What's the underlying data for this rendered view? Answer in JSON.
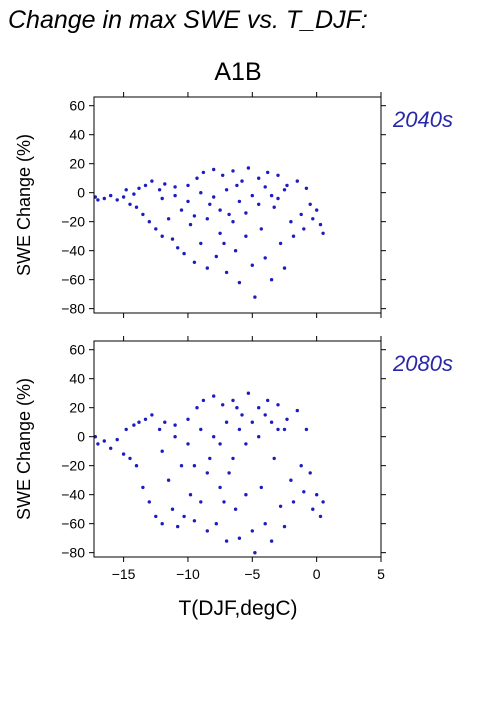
{
  "title": "Change in max SWE vs. T_DJF:",
  "scenario": "A1B",
  "colors": {
    "points": "#1c1cc0",
    "period_label": "#2828a8"
  },
  "chart_data": [
    {
      "type": "scatter",
      "period_label": "2040s",
      "xlabel": "",
      "ylabel": "SWE Change (%)",
      "xlim": [
        -17.3,
        5
      ],
      "ylim": [
        -83,
        66
      ],
      "xticks": [
        -15,
        -10,
        -5,
        0,
        5
      ],
      "xtick_labels": [
        "",
        "",
        "",
        "",
        ""
      ],
      "yticks": [
        60,
        40,
        20,
        0,
        -20,
        -40,
        -60,
        -80
      ],
      "ytick_labels": [
        "60",
        "40",
        "20",
        "0",
        "−20",
        "−40",
        "−60",
        "−80"
      ],
      "grid": false,
      "points": [
        [
          -17.2,
          -3
        ],
        [
          -17.0,
          -5
        ],
        [
          -16.5,
          -4
        ],
        [
          -16.0,
          -2
        ],
        [
          -15.5,
          -5
        ],
        [
          -15.0,
          -3
        ],
        [
          -14.8,
          2
        ],
        [
          -14.5,
          -8
        ],
        [
          -14.2,
          -1
        ],
        [
          -14.0,
          -10
        ],
        [
          -13.8,
          3
        ],
        [
          -13.5,
          -15
        ],
        [
          -13.3,
          5
        ],
        [
          -13.0,
          -20
        ],
        [
          -12.8,
          8
        ],
        [
          -12.5,
          -25
        ],
        [
          -12.2,
          2
        ],
        [
          -12.0,
          -30
        ],
        [
          -11.8,
          6
        ],
        [
          -11.5,
          -18
        ],
        [
          -11.2,
          -32
        ],
        [
          -11.0,
          4
        ],
        [
          -10.8,
          -38
        ],
        [
          -10.5,
          -12
        ],
        [
          -10.3,
          -42
        ],
        [
          -10.0,
          5
        ],
        [
          -9.8,
          -22
        ],
        [
          -9.5,
          -48
        ],
        [
          -9.3,
          10
        ],
        [
          -9.0,
          -35
        ],
        [
          -8.8,
          14
        ],
        [
          -8.5,
          -52
        ],
        [
          -8.3,
          -8
        ],
        [
          -8.0,
          16
        ],
        [
          -7.8,
          -44
        ],
        [
          -7.5,
          -28
        ],
        [
          -7.3,
          12
        ],
        [
          -7.0,
          -55
        ],
        [
          -6.8,
          -15
        ],
        [
          -6.5,
          15
        ],
        [
          -6.3,
          -40
        ],
        [
          -6.0,
          -62
        ],
        [
          -5.8,
          8
        ],
        [
          -5.5,
          -30
        ],
        [
          -5.3,
          17
        ],
        [
          -5.0,
          -50
        ],
        [
          -4.8,
          -72
        ],
        [
          -4.5,
          10
        ],
        [
          -4.3,
          -25
        ],
        [
          -4.0,
          -45
        ],
        [
          -3.8,
          14
        ],
        [
          -3.5,
          -60
        ],
        [
          -3.3,
          -10
        ],
        [
          -3.0,
          12
        ],
        [
          -2.8,
          -35
        ],
        [
          -2.5,
          -52
        ],
        [
          -2.3,
          5
        ],
        [
          -2.0,
          -20
        ],
        [
          -1.8,
          -30
        ],
        [
          -1.5,
          8
        ],
        [
          -1.2,
          -15
        ],
        [
          -1.0,
          -25
        ],
        [
          -0.8,
          3
        ],
        [
          -0.5,
          -8
        ],
        [
          -0.3,
          -18
        ],
        [
          0.0,
          -12
        ],
        [
          0.3,
          -22
        ],
        [
          0.5,
          -28
        ],
        [
          -6.0,
          -6
        ],
        [
          -7.0,
          2
        ],
        [
          -8.0,
          -3
        ],
        [
          -9.0,
          0
        ],
        [
          -5.0,
          -2
        ],
        [
          -4.0,
          4
        ],
        [
          -3.0,
          -4
        ],
        [
          -10.0,
          -6
        ],
        [
          -11.0,
          -2
        ],
        [
          -12.0,
          -4
        ],
        [
          -6.5,
          -20
        ],
        [
          -7.5,
          -12
        ],
        [
          -8.5,
          -18
        ],
        [
          -5.5,
          -14
        ],
        [
          -4.5,
          -8
        ],
        [
          -3.5,
          -2
        ],
        [
          -2.5,
          2
        ],
        [
          -9.5,
          -16
        ],
        [
          -6.2,
          5
        ],
        [
          -7.2,
          -35
        ]
      ]
    },
    {
      "type": "scatter",
      "period_label": "2080s",
      "xlabel": "T(DJF,degC)",
      "ylabel": "SWE Change (%)",
      "xlim": [
        -17.3,
        5
      ],
      "ylim": [
        -83,
        66
      ],
      "xticks": [
        -15,
        -10,
        -5,
        0,
        5
      ],
      "xtick_labels": [
        "−15",
        "−10",
        "−5",
        "0",
        "5"
      ],
      "yticks": [
        60,
        40,
        20,
        0,
        -20,
        -40,
        -60,
        -80
      ],
      "ytick_labels": [
        "60",
        "40",
        "20",
        "0",
        "−20",
        "−40",
        "−60",
        "−80"
      ],
      "grid": false,
      "points": [
        [
          -17.2,
          0
        ],
        [
          -17.0,
          -5
        ],
        [
          -16.5,
          -3
        ],
        [
          -16.0,
          -8
        ],
        [
          -15.5,
          -2
        ],
        [
          -15.0,
          -12
        ],
        [
          -14.8,
          5
        ],
        [
          -14.5,
          -15
        ],
        [
          -14.2,
          8
        ],
        [
          -14.0,
          -20
        ],
        [
          -13.8,
          10
        ],
        [
          -13.5,
          -35
        ],
        [
          -13.3,
          12
        ],
        [
          -13.0,
          -45
        ],
        [
          -12.8,
          15
        ],
        [
          -12.5,
          -55
        ],
        [
          -12.2,
          5
        ],
        [
          -12.0,
          -60
        ],
        [
          -11.8,
          10
        ],
        [
          -11.5,
          -30
        ],
        [
          -11.2,
          -50
        ],
        [
          -11.0,
          8
        ],
        [
          -10.8,
          -62
        ],
        [
          -10.5,
          -20
        ],
        [
          -10.3,
          -55
        ],
        [
          -10.0,
          12
        ],
        [
          -9.8,
          -40
        ],
        [
          -9.5,
          -58
        ],
        [
          -9.3,
          20
        ],
        [
          -9.0,
          -45
        ],
        [
          -8.8,
          25
        ],
        [
          -8.5,
          -65
        ],
        [
          -8.3,
          -15
        ],
        [
          -8.0,
          28
        ],
        [
          -7.8,
          -60
        ],
        [
          -7.5,
          -35
        ],
        [
          -7.3,
          22
        ],
        [
          -7.0,
          -72
        ],
        [
          -6.8,
          -25
        ],
        [
          -6.5,
          25
        ],
        [
          -6.3,
          -50
        ],
        [
          -6.0,
          -70
        ],
        [
          -5.8,
          15
        ],
        [
          -5.5,
          -40
        ],
        [
          -5.3,
          30
        ],
        [
          -5.0,
          -65
        ],
        [
          -4.8,
          -80
        ],
        [
          -4.5,
          20
        ],
        [
          -4.3,
          -35
        ],
        [
          -4.0,
          -60
        ],
        [
          -3.8,
          25
        ],
        [
          -3.5,
          -72
        ],
        [
          -3.3,
          -15
        ],
        [
          -3.0,
          22
        ],
        [
          -2.8,
          -48
        ],
        [
          -2.5,
          -62
        ],
        [
          -2.3,
          12
        ],
        [
          -2.0,
          -30
        ],
        [
          -1.8,
          -45
        ],
        [
          -1.5,
          18
        ],
        [
          -1.2,
          -20
        ],
        [
          -1.0,
          -38
        ],
        [
          -0.8,
          5
        ],
        [
          -0.5,
          -25
        ],
        [
          -0.3,
          -50
        ],
        [
          0.0,
          -40
        ],
        [
          0.3,
          -55
        ],
        [
          0.5,
          -45
        ],
        [
          -6.0,
          5
        ],
        [
          -7.0,
          10
        ],
        [
          -8.0,
          0
        ],
        [
          -9.0,
          5
        ],
        [
          -5.0,
          10
        ],
        [
          -4.0,
          15
        ],
        [
          -3.0,
          5
        ],
        [
          -10.0,
          -5
        ],
        [
          -11.0,
          0
        ],
        [
          -12.0,
          -10
        ],
        [
          -6.5,
          -15
        ],
        [
          -7.5,
          -5
        ],
        [
          -8.5,
          -25
        ],
        [
          -5.5,
          -5
        ],
        [
          -4.5,
          0
        ],
        [
          -3.5,
          10
        ],
        [
          -2.5,
          5
        ],
        [
          -9.5,
          -20
        ],
        [
          -6.2,
          20
        ],
        [
          -7.2,
          -45
        ]
      ]
    }
  ]
}
